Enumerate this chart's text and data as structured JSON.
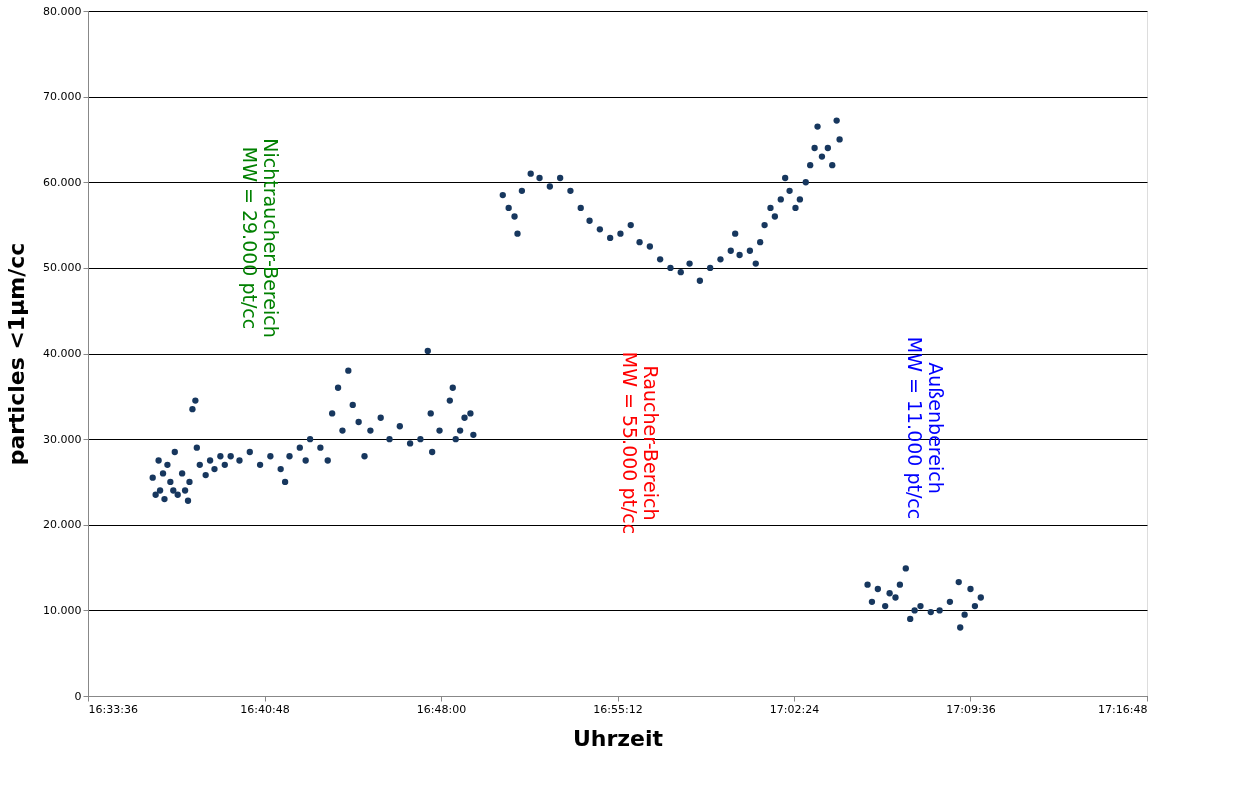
{
  "chart_data": {
    "type": "scatter",
    "xlabel": "Uhrzeit",
    "ylabel": "particles <1µm/cc",
    "xlim": [
      16.56,
      17.28
    ],
    "xticks": [
      {
        "value": 16.56,
        "label": "16:33:36"
      },
      {
        "value": 16.68,
        "label": "16:40:48"
      },
      {
        "value": 16.8,
        "label": "16:48:00"
      },
      {
        "value": 16.92,
        "label": "16:55:12"
      },
      {
        "value": 17.04,
        "label": "17:02:24"
      },
      {
        "value": 17.16,
        "label": "17:09:36"
      },
      {
        "value": 17.28,
        "label": "17:16:48"
      }
    ],
    "ylim": [
      0,
      80000
    ],
    "yticks": [
      0,
      {
        "value": 10000,
        "label": "10.000"
      },
      {
        "value": 20000,
        "label": "20.000"
      },
      {
        "value": 30000,
        "label": "30.000"
      },
      {
        "value": 40000,
        "label": "40.000"
      },
      {
        "value": 50000,
        "label": "50.000"
      },
      {
        "value": 60000,
        "label": "60.000"
      },
      {
        "value": 70000,
        "label": "70.000"
      },
      {
        "value": 80000,
        "label": "80.000"
      }
    ],
    "grid": "y",
    "marker": "circle",
    "legend": false,
    "annotations": [
      "Nichtraucher-Bereich\nMW = 29.000 pt/cc",
      "Raucher-Bereich\nMW =  55.000 pt/cc",
      "Außenbereich\nMW = 11.000 pt/cc"
    ],
    "series": [
      {
        "color": "#17375e",
        "x": [
          16.604,
          16.606,
          16.608,
          16.609,
          16.611,
          16.612,
          16.614,
          16.616,
          16.618,
          16.619,
          16.621,
          16.624,
          16.626,
          16.628,
          16.629,
          16.631,
          16.633,
          16.634,
          16.636,
          16.64,
          16.643,
          16.646,
          16.65,
          16.653,
          16.657,
          16.663,
          16.67,
          16.677,
          16.684,
          16.691,
          16.694,
          16.697,
          16.704,
          16.708,
          16.711,
          16.718,
          16.723,
          16.726,
          16.73,
          16.733,
          16.737,
          16.74,
          16.744,
          16.748,
          16.752,
          16.759,
          16.765,
          16.772,
          16.779,
          16.786,
          16.791,
          16.793,
          16.794,
          16.799,
          16.806,
          16.808,
          16.81,
          16.813,
          16.816,
          16.82,
          16.822,
          16.842,
          16.846,
          16.85,
          16.852,
          16.855,
          16.861,
          16.867,
          16.874,
          16.881,
          16.888,
          16.895,
          16.901,
          16.908,
          16.915,
          16.922,
          16.929,
          16.935,
          16.942,
          16.949,
          16.956,
          16.963,
          16.969,
          16.976,
          16.983,
          16.99,
          16.997,
          17.0,
          17.003,
          17.01,
          17.014,
          17.017,
          17.02,
          17.024,
          17.027,
          17.031,
          17.034,
          17.037,
          17.041,
          17.044,
          17.048,
          17.051,
          17.054,
          17.056,
          17.059,
          17.063,
          17.066,
          17.069,
          17.071,
          17.09,
          17.093,
          17.097,
          17.102,
          17.105,
          17.109,
          17.112,
          17.116,
          17.119,
          17.122,
          17.126,
          17.133,
          17.139,
          17.146,
          17.152,
          17.153,
          17.156,
          17.16,
          17.163,
          17.167
        ],
        "values": [
          25500,
          23500,
          27500,
          24000,
          26000,
          23000,
          27000,
          25000,
          24000,
          28500,
          23500,
          26000,
          24000,
          22800,
          25000,
          33500,
          34500,
          29000,
          27000,
          25800,
          27500,
          26500,
          28000,
          27000,
          28000,
          27500,
          28500,
          27000,
          28000,
          26500,
          25000,
          28000,
          29000,
          27500,
          30000,
          29000,
          27500,
          33000,
          36000,
          31000,
          38000,
          34000,
          32000,
          28000,
          31000,
          32500,
          30000,
          31500,
          29500,
          30000,
          40300,
          33000,
          28500,
          31000,
          34500,
          36000,
          30000,
          31000,
          32500,
          33000,
          30500,
          58500,
          57000,
          56000,
          54000,
          59000,
          61000,
          60500,
          59500,
          60500,
          59000,
          57000,
          55500,
          54500,
          53500,
          54000,
          55000,
          53000,
          52500,
          51000,
          50000,
          49500,
          50500,
          48500,
          50000,
          51000,
          52000,
          54000,
          51500,
          52000,
          50500,
          53000,
          55000,
          57000,
          56000,
          58000,
          60500,
          59000,
          57000,
          58000,
          60000,
          62000,
          64000,
          66500,
          63000,
          64000,
          62000,
          67200,
          65000,
          13000,
          11000,
          12500,
          10500,
          12000,
          11500,
          13000,
          14900,
          9000,
          10000,
          10500,
          9800,
          10000,
          11000,
          13300,
          8000,
          9500,
          12500,
          10500,
          11500
        ]
      }
    ]
  }
}
